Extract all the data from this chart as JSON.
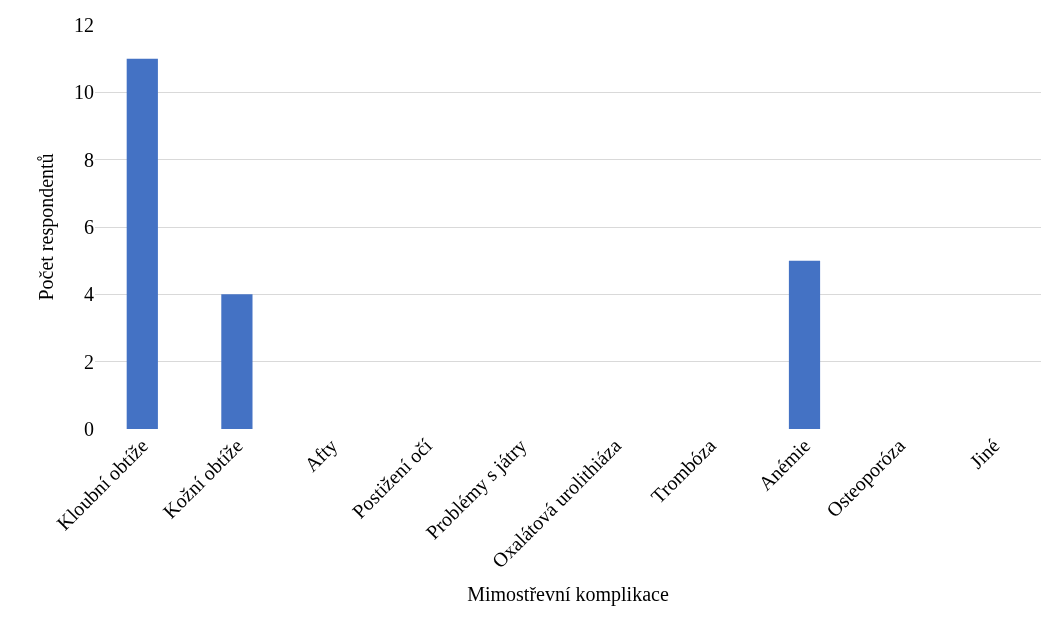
{
  "chart_data": {
    "type": "bar",
    "xlabel": "Mimostřevní komplikace",
    "ylabel": "Počet respondentů",
    "categories": [
      "Kloubní obtíže",
      "Kožní obtíže",
      "Afty",
      "Postižení očí",
      "Problémy s játry",
      "Oxalátová urolithiáza",
      "Trombóza",
      "Anémie",
      "Osteoporóza",
      "Jiné"
    ],
    "values": [
      11,
      4,
      0,
      0,
      0,
      0,
      0,
      5,
      0,
      0
    ],
    "color": "#4472c4",
    "ylim": [
      0,
      12
    ],
    "yticks": [
      0,
      2,
      4,
      6,
      8,
      10,
      12
    ],
    "grid": "y"
  }
}
